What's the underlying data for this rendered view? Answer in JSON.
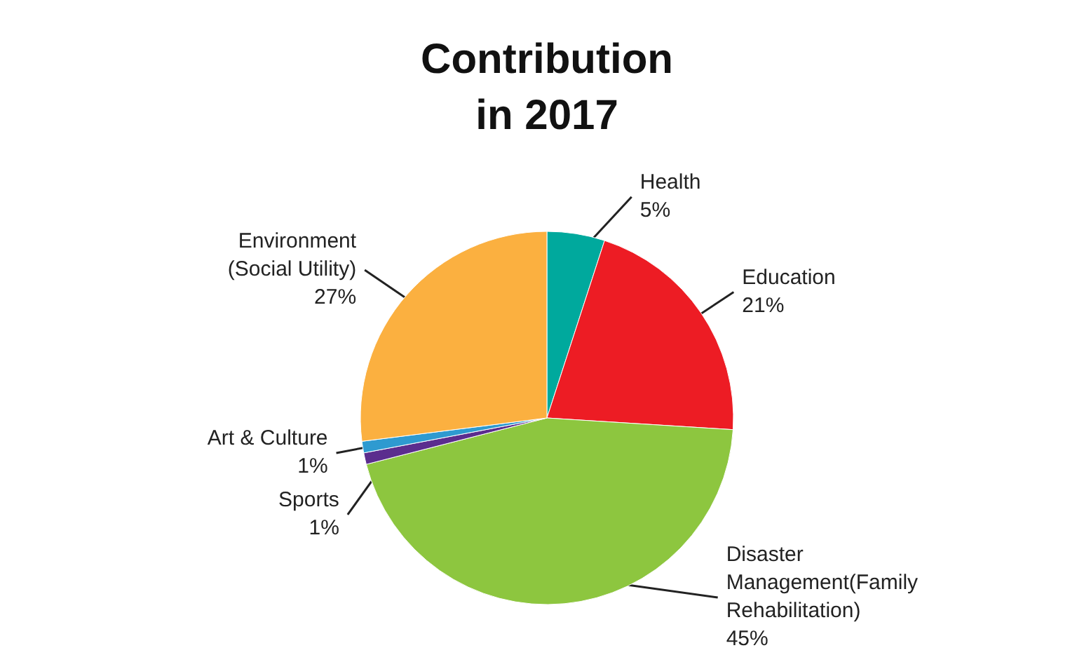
{
  "chart_data": {
    "type": "pie",
    "title": "Contribution in 2017",
    "categories": [
      "Health",
      "Education",
      "Disaster Management(Family Rehabilitation)",
      "Sports",
      "Art & Culture",
      "Environment (Social Utility)"
    ],
    "values": [
      5,
      21,
      45,
      1,
      1,
      27
    ],
    "value_labels": [
      "5%",
      "21%",
      "45%",
      "1%",
      "1%",
      "27%"
    ],
    "colors": [
      "#00a99d",
      "#ed1c24",
      "#8dc63f",
      "#5b2d8e",
      "#2e9ad0",
      "#fbb040"
    ],
    "legend": false
  }
}
